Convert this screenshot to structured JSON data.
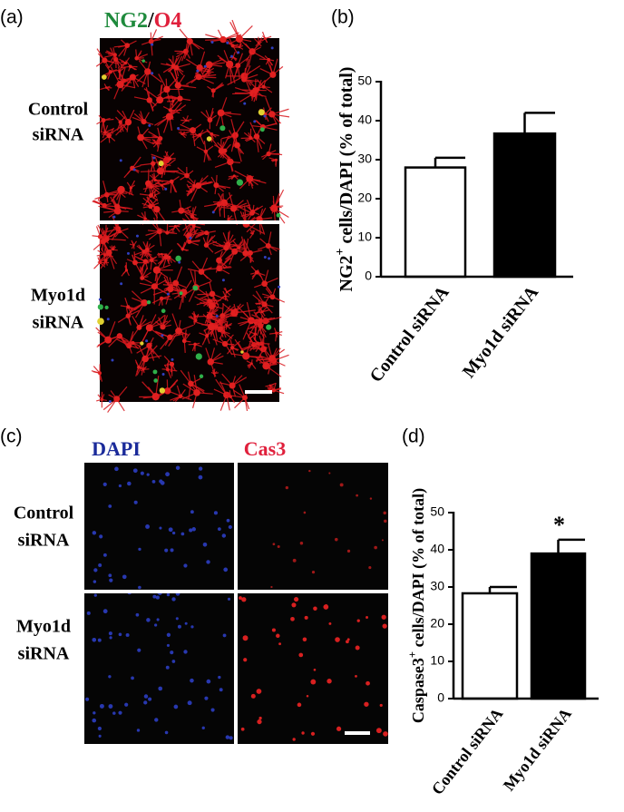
{
  "figure": {
    "panel_labels": [
      "(a)",
      "(b)",
      "(c)",
      "(d)"
    ],
    "a": {
      "stain": [
        "NG2",
        "/",
        "O4"
      ],
      "rows": [
        [
          "Control",
          "siRNA"
        ],
        [
          "Myo1d",
          "siRNA"
        ]
      ]
    },
    "c": {
      "stains": [
        "DAPI",
        "Cas3"
      ],
      "rows": [
        [
          "Control",
          "siRNA"
        ],
        [
          "Myo1d",
          "siRNA"
        ]
      ]
    }
  },
  "chart_data": [
    {
      "type": "bar",
      "ylabel_parts": [
        "NG2",
        "+",
        " cells/DAPI (% of total)"
      ],
      "categories": [
        "Control siRNA",
        "Myo1d siRNA"
      ],
      "values": [
        28,
        36.7
      ],
      "errors": [
        2.5,
        5.3
      ],
      "colors": [
        "#ffffff",
        "#000000"
      ],
      "ylim": [
        0,
        50
      ],
      "yticks": [
        0,
        10,
        20,
        30,
        40,
        50
      ]
    },
    {
      "type": "bar",
      "ylabel_parts": [
        "Caspase3",
        "+",
        " cells/DAPI  (% of total)"
      ],
      "categories": [
        "Control siRNA",
        "Myo1d siRNA"
      ],
      "values": [
        28.3,
        39
      ],
      "errors": [
        1.7,
        3.7
      ],
      "colors": [
        "#ffffff",
        "#000000"
      ],
      "ylim": [
        0,
        50
      ],
      "yticks": [
        0,
        10,
        20,
        30,
        40,
        50
      ],
      "annotation": "*"
    }
  ]
}
